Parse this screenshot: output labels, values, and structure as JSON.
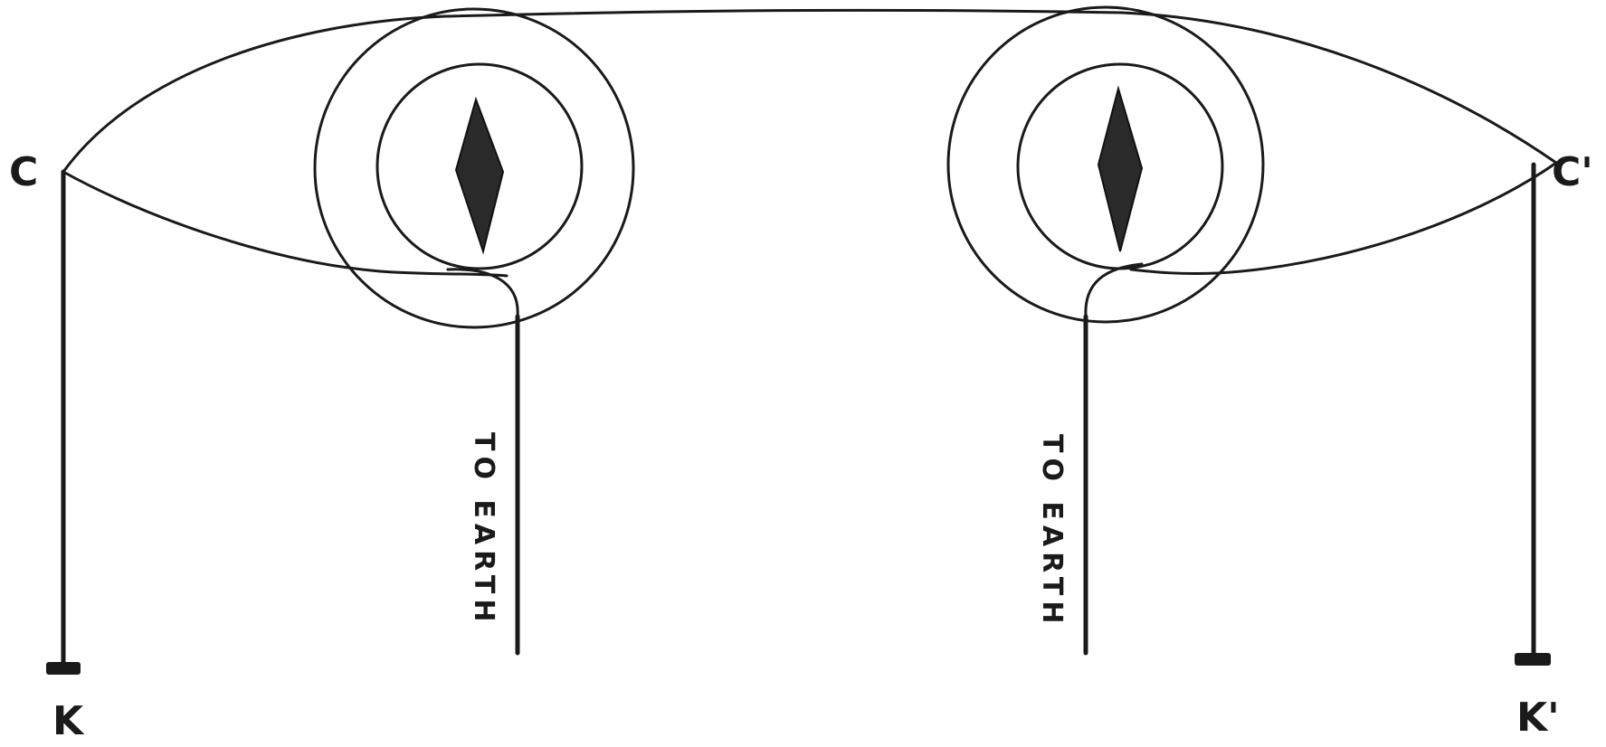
{
  "labels": {
    "left_top": "C",
    "right_top": "C'",
    "left_bottom": "K",
    "right_bottom": "K'",
    "left_earth": "TO EARTH",
    "right_earth": "TO EARTH"
  },
  "colors": {
    "ink": "#1a1a1a",
    "background": "#ffffff"
  }
}
